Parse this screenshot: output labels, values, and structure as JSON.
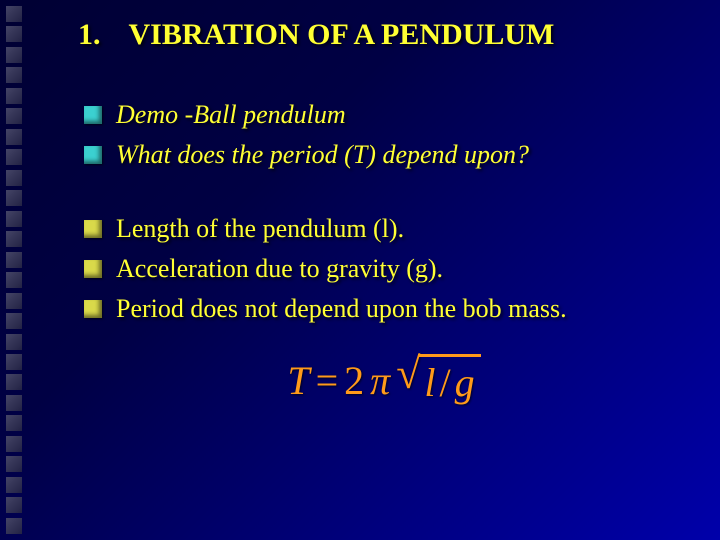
{
  "decor": {
    "count": 26
  },
  "title": {
    "number": "1.",
    "text": "VIBRATION OF A PENDULUM"
  },
  "bullets_a": [
    {
      "text": "Demo -Ball pendulum",
      "italic": true
    },
    {
      "text": "What does the period (T) depend upon?",
      "italic": true
    }
  ],
  "bullets_b": [
    {
      "text": "Length of the pendulum (l).",
      "italic": false
    },
    {
      "text": "Acceleration due to gravity (g).",
      "italic": false
    },
    {
      "text": "Period does not depend upon the bob mass.",
      "italic": false
    }
  ],
  "formula": {
    "lhs": "T",
    "eq": "=",
    "two": "2",
    "pi": "π",
    "rad_l": "l",
    "rad_slash": "/",
    "rad_g": "g",
    "color": "#ff9a1a"
  },
  "colors": {
    "text": "#ffff33",
    "bullet_a": "#3bd0d0",
    "bullet_b": "#d9d94a"
  }
}
